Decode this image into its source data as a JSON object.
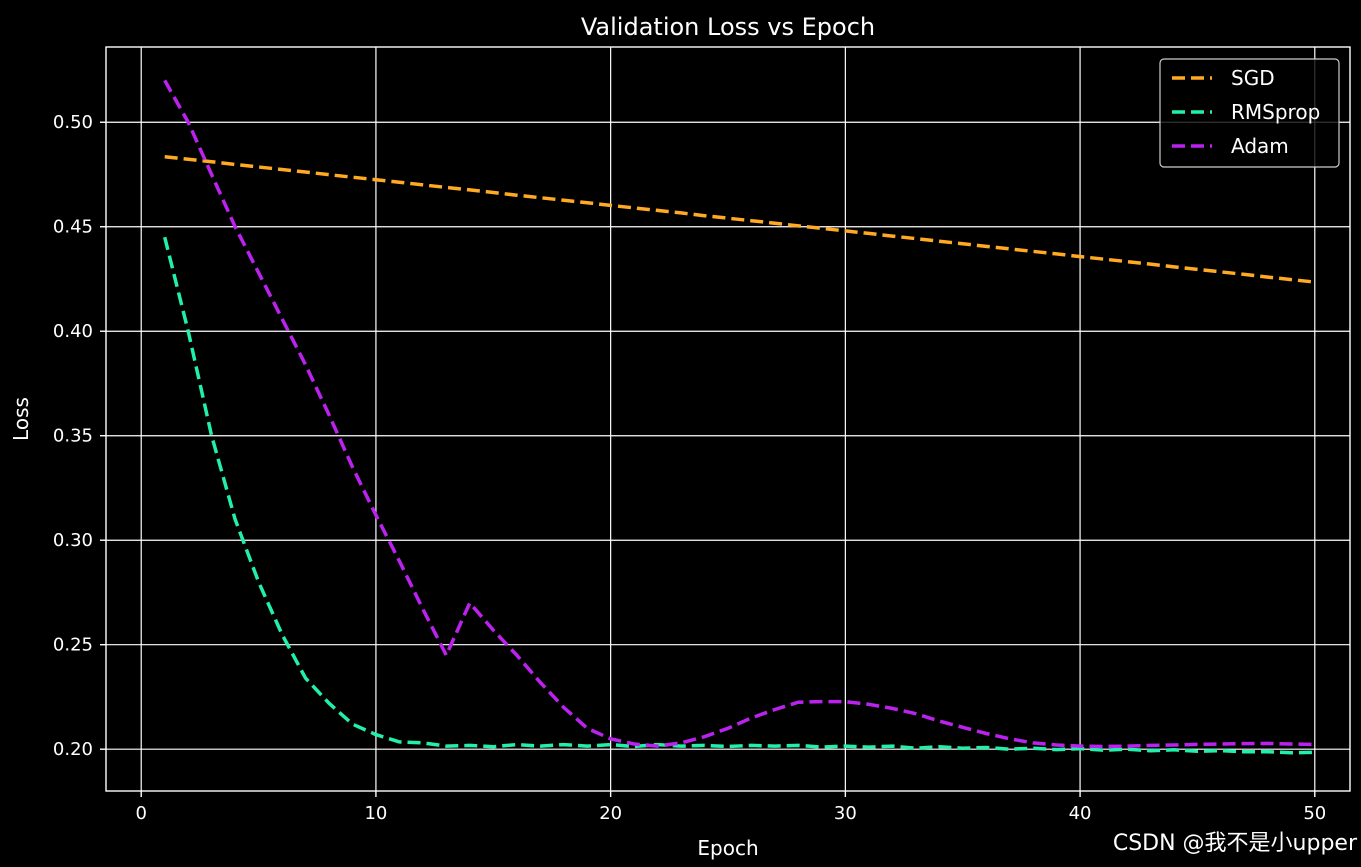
{
  "chart_data": {
    "type": "line",
    "title": "Validation Loss vs Epoch",
    "xlabel": "Epoch",
    "ylabel": "Loss",
    "xlim": [
      -1.5,
      51.5
    ],
    "ylim": [
      0.18,
      0.536
    ],
    "xticks": [
      0,
      10,
      20,
      30,
      40,
      50
    ],
    "xtick_labels": [
      "0",
      "10",
      "20",
      "30",
      "40",
      "50"
    ],
    "yticks": [
      0.2,
      0.25,
      0.3,
      0.35,
      0.4,
      0.45,
      0.5
    ],
    "ytick_labels": [
      "0.20",
      "0.25",
      "0.30",
      "0.35",
      "0.40",
      "0.45",
      "0.50"
    ],
    "grid": true,
    "legend_position": "top-right",
    "x": [
      1,
      2,
      3,
      4,
      5,
      6,
      7,
      8,
      9,
      10,
      11,
      12,
      13,
      14,
      15,
      16,
      17,
      18,
      19,
      20,
      21,
      22,
      23,
      24,
      25,
      26,
      27,
      28,
      29,
      30,
      31,
      32,
      33,
      34,
      35,
      36,
      37,
      38,
      39,
      40,
      41,
      42,
      43,
      44,
      45,
      46,
      47,
      48,
      49,
      50
    ],
    "series": [
      {
        "name": "SGD",
        "color": "#ffaa22",
        "values": [
          0.4835,
          0.4823,
          0.4811,
          0.4798,
          0.4786,
          0.4774,
          0.4762,
          0.4749,
          0.4737,
          0.4725,
          0.4713,
          0.47,
          0.4688,
          0.4676,
          0.4664,
          0.4651,
          0.4639,
          0.4627,
          0.4615,
          0.4602,
          0.459,
          0.4578,
          0.4566,
          0.4553,
          0.4541,
          0.4529,
          0.4517,
          0.4504,
          0.4492,
          0.448,
          0.4468,
          0.4455,
          0.4443,
          0.4431,
          0.4419,
          0.4406,
          0.4394,
          0.4382,
          0.437,
          0.4357,
          0.4345,
          0.4333,
          0.4321,
          0.4308,
          0.4296,
          0.4284,
          0.4272,
          0.4259,
          0.4247,
          0.4235
        ]
      },
      {
        "name": "RMSprop",
        "color": "#22f0aa",
        "values": [
          0.445,
          0.4,
          0.35,
          0.31,
          0.28,
          0.255,
          0.234,
          0.222,
          0.212,
          0.207,
          0.2035,
          0.203,
          0.2015,
          0.2018,
          0.2012,
          0.2022,
          0.2015,
          0.2022,
          0.2015,
          0.2022,
          0.2013,
          0.2022,
          0.2015,
          0.2018,
          0.2013,
          0.2018,
          0.2015,
          0.2018,
          0.201,
          0.2015,
          0.201,
          0.2015,
          0.2005,
          0.2012,
          0.2005,
          0.2008,
          0.2,
          0.2005,
          0.1998,
          0.2003,
          0.1995,
          0.2,
          0.1993,
          0.1997,
          0.199,
          0.1993,
          0.1988,
          0.1988,
          0.1983,
          0.1985
        ]
      },
      {
        "name": "Adam",
        "color": "#bb22ee",
        "values": [
          0.52,
          0.5,
          0.475,
          0.45,
          0.428,
          0.406,
          0.384,
          0.36,
          0.335,
          0.312,
          0.29,
          0.267,
          0.245,
          0.27,
          0.257,
          0.245,
          0.232,
          0.22,
          0.21,
          0.205,
          0.2025,
          0.2015,
          0.203,
          0.206,
          0.21,
          0.215,
          0.219,
          0.2225,
          0.2228,
          0.2228,
          0.2215,
          0.2195,
          0.217,
          0.2135,
          0.2105,
          0.2075,
          0.205,
          0.203,
          0.202,
          0.2015,
          0.2013,
          0.2015,
          0.2018,
          0.202,
          0.2023,
          0.2025,
          0.2027,
          0.2028,
          0.2025,
          0.2023
        ]
      }
    ]
  },
  "watermark": "CSDN @我不是小upper"
}
